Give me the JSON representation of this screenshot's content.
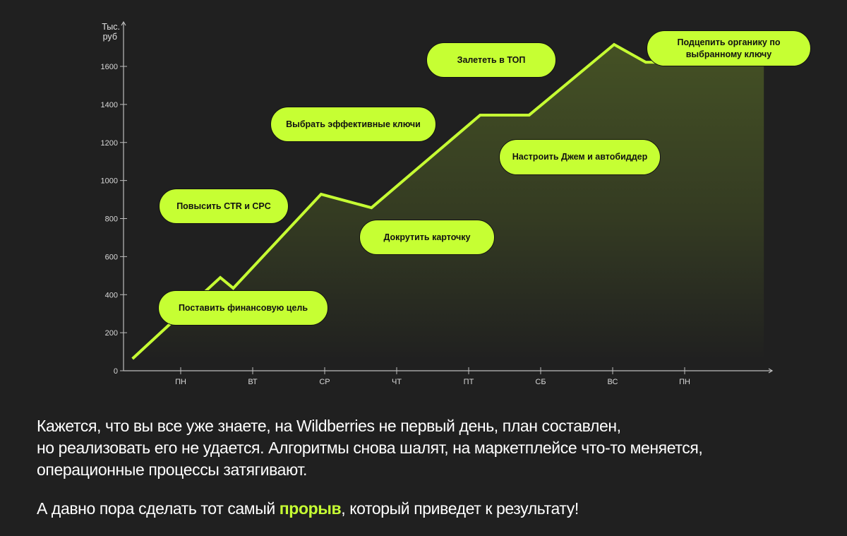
{
  "chart_data": {
    "type": "area",
    "ylabel": "Тыс. руб",
    "ylabel_lines": [
      "Тыс.",
      "руб"
    ],
    "ylim": [
      0,
      1700
    ],
    "yticks": [
      0,
      200,
      400,
      600,
      800,
      1000,
      1200,
      1400,
      1600
    ],
    "categories": [
      "ПН",
      "ВТ",
      "СР",
      "ЧТ",
      "ПТ",
      "СБ",
      "ВС",
      "ПН"
    ],
    "series": [
      {
        "x": [
          0.33,
          1.55,
          1.73,
          2.95,
          3.65,
          5.16,
          5.84,
          7.02,
          7.46,
          9.1
        ],
        "values": [
          63,
          490,
          434,
          928,
          857,
          1344,
          1344,
          1715,
          1622,
          1622
        ]
      }
    ],
    "grid": false,
    "line_color": "#c6ff33",
    "annotations": [
      "Поставить финансовую цель",
      "Повысить CTR и CPC",
      "Выбрать эффективные ключи",
      "Докрутить карточку",
      "Залететь в ТОП",
      "Настроить Джем и автобиддер",
      "Подцепить органику по выбранному ключу"
    ]
  },
  "text": {
    "line1": "Кажется, что вы все уже знаете, на Wildberries не первый день, план составлен,",
    "line2": "но реализовать его не удается. Алгоритмы снова шалят, на маркетплейсе что-то меняется,",
    "line3": "операционные процессы затягивают.",
    "line4_before": "А давно пора сделать тот самый ",
    "line4_accent": "прорыв",
    "line4_after": ", который приведет к результату!"
  },
  "colors": {
    "background": "#202020",
    "accent": "#c6ff33",
    "text": "#ffffff"
  }
}
